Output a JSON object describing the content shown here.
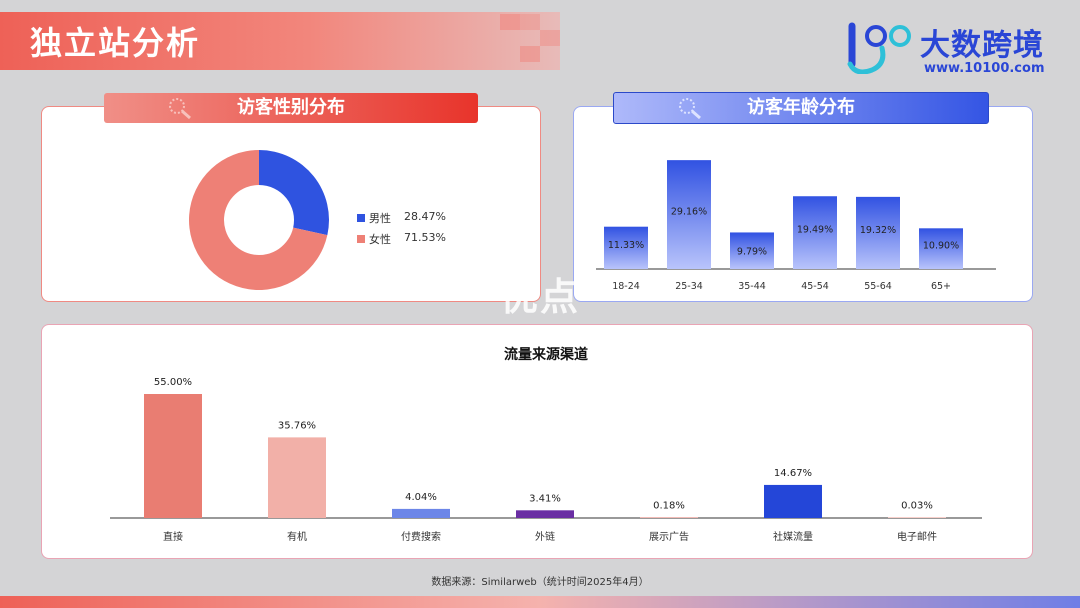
{
  "header": {
    "title": "独立站分析"
  },
  "brand": {
    "name": "大数跨境",
    "url": "www.10100.com",
    "mark_text": "100"
  },
  "watermark": "优点",
  "gender_panel": {
    "heading": "访客性别分布",
    "legend": [
      {
        "label": "男性",
        "value": "28.47%",
        "color": "#2f53e0"
      },
      {
        "label": "女性",
        "value": "71.53%",
        "color": "#ee8076"
      }
    ]
  },
  "age_panel": {
    "heading": "访客年龄分布"
  },
  "channel_panel": {
    "title": "流量来源渠道"
  },
  "footer": {
    "source": "数据来源：Similarweb（统计时间2025年4月）"
  },
  "chart_data": [
    {
      "type": "pie",
      "donut": true,
      "categories": [
        "男性",
        "女性"
      ],
      "values": [
        28.47,
        71.53
      ],
      "colors": [
        "#2f53e0",
        "#ee8076"
      ],
      "legend_position": "right"
    },
    {
      "type": "bar",
      "categories": [
        "18-24",
        "25-34",
        "35-44",
        "45-54",
        "55-64",
        "65+"
      ],
      "values": [
        11.33,
        29.16,
        9.79,
        19.49,
        19.32,
        10.9
      ],
      "labels": [
        "11.33%",
        "29.16%",
        "9.79%",
        "19.49%",
        "19.32%",
        "10.90%"
      ],
      "color": "#3a5ae8",
      "grid": false
    },
    {
      "type": "bar",
      "title": "流量来源渠道",
      "categories": [
        "直接",
        "有机",
        "付费搜索",
        "外链",
        "展示广告",
        "社媒流量",
        "电子邮件"
      ],
      "values": [
        55.0,
        35.76,
        4.04,
        3.41,
        0.18,
        14.67,
        0.03
      ],
      "labels": [
        "55.00%",
        "35.76%",
        "4.04%",
        "3.41%",
        "0.18%",
        "14.67%",
        "0.03%"
      ],
      "colors": [
        "#e97d72",
        "#f2b0a8",
        "#6c86e8",
        "#6a2ea3",
        "#e88e86",
        "#2446d8",
        "#f2b0a8"
      ],
      "grid": false
    }
  ]
}
